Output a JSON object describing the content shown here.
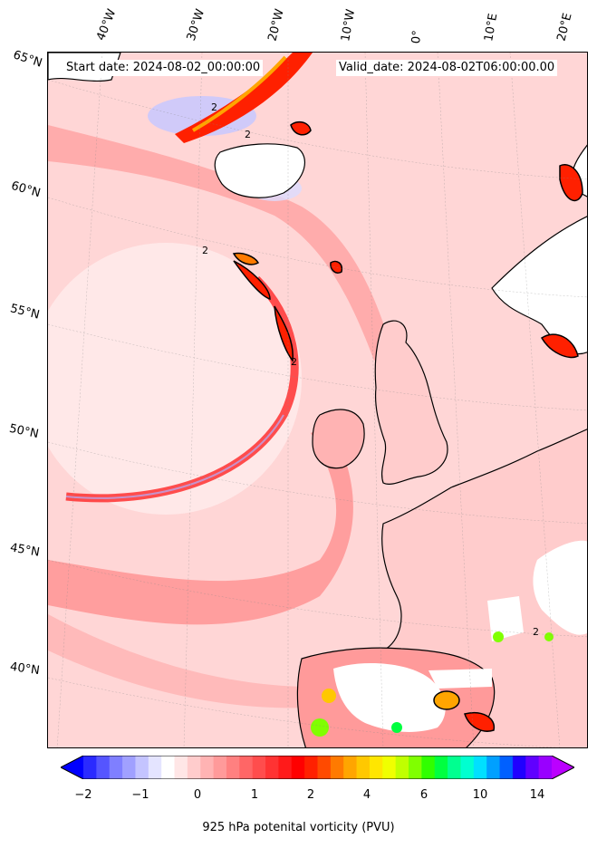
{
  "header": {
    "start_date": "Start date: 2024-08-02_00:00:00",
    "valid_date": "Valid_date: 2024-08-02T06:00:00.00"
  },
  "longitude_labels": [
    "40°W",
    "30°W",
    "20°W",
    "10°W",
    "0°",
    "10°E",
    "20°E"
  ],
  "latitude_labels": [
    "65°N",
    "60°N",
    "55°N",
    "50°N",
    "45°N",
    "40°N"
  ],
  "contour_label": "2",
  "colorbar": {
    "ticks": [
      "−2",
      "−1",
      "0",
      "1",
      "2",
      "4",
      "6",
      "10",
      "14"
    ],
    "label": "925 hPa potenital vorticity (PVU)",
    "colors": [
      "#0000ff",
      "#2a2aff",
      "#5555ff",
      "#7f7fff",
      "#a0a0ff",
      "#c4c4ff",
      "#e4e4ff",
      "#ffffff",
      "#ffe6e6",
      "#ffcccc",
      "#ffb3b3",
      "#ff9a9a",
      "#ff8080",
      "#ff6666",
      "#ff4d4d",
      "#ff3333",
      "#ff1a1a",
      "#ff0000",
      "#ff2000",
      "#ff4a00",
      "#ff7a00",
      "#ffa500",
      "#ffc800",
      "#ffe600",
      "#f0ff00",
      "#c0ff00",
      "#80ff00",
      "#30ff00",
      "#00ff40",
      "#00ff90",
      "#00ffd0",
      "#00e0ff",
      "#00a0ff",
      "#0060ff",
      "#2000ff",
      "#6000ff",
      "#9900ff",
      "#bb00ff"
    ]
  }
}
